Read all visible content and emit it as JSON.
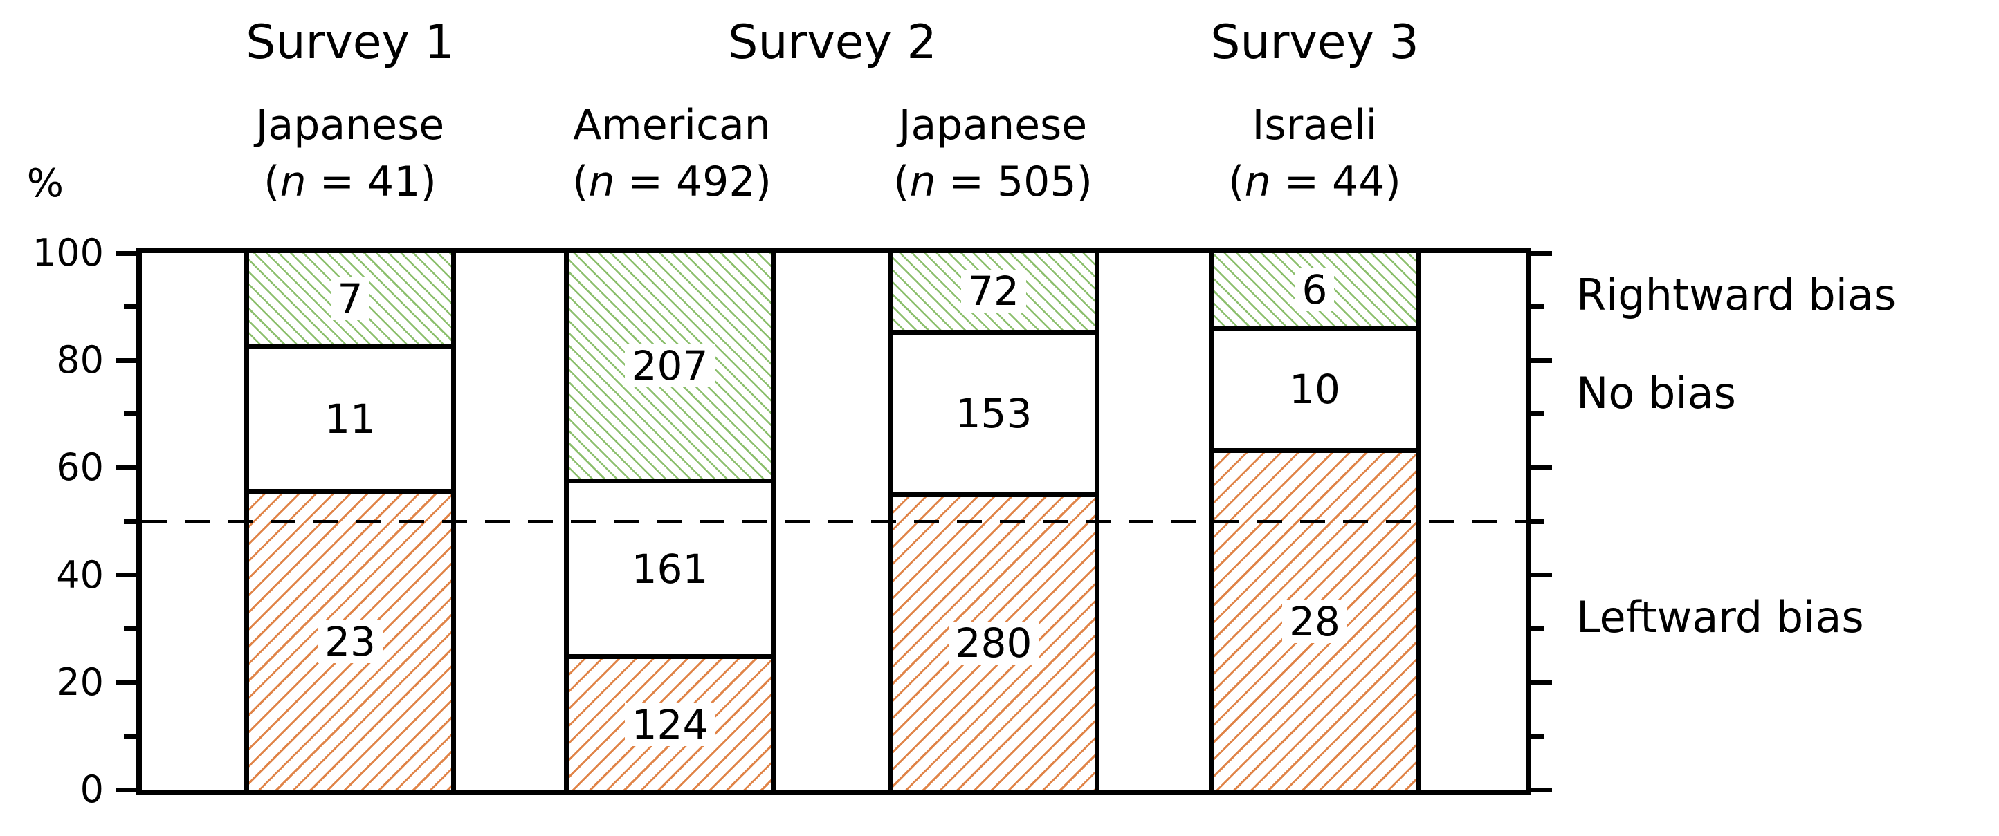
{
  "chart_data": {
    "type": "bar",
    "stacked": true,
    "title": "",
    "ylabel": "%",
    "ylim": [
      0,
      100
    ],
    "yticks_major": [
      0,
      20,
      40,
      60,
      80,
      100
    ],
    "yticks_minor": [
      10,
      30,
      50,
      70,
      90
    ],
    "reference_line_percent": 50,
    "grid": false,
    "legend_position": "right",
    "surveys": [
      {
        "label": "Survey 1",
        "bar_indexes": [
          0
        ]
      },
      {
        "label": "Survey 2",
        "bar_indexes": [
          1,
          2
        ]
      },
      {
        "label": "Survey 3",
        "bar_indexes": [
          3
        ]
      }
    ],
    "categories": [
      "Japanese",
      "American",
      "Japanese",
      "Israeli"
    ],
    "bars": [
      {
        "group": "Japanese",
        "n": 41,
        "n_label": "(n = 41)",
        "values": {
          "leftward": 23,
          "no_bias": 11,
          "rightward": 7
        }
      },
      {
        "group": "American",
        "n": 492,
        "n_label": "(n = 492)",
        "values": {
          "leftward": 124,
          "no_bias": 161,
          "rightward": 207
        }
      },
      {
        "group": "Japanese",
        "n": 505,
        "n_label": "(n = 505)",
        "values": {
          "leftward": 280,
          "no_bias": 153,
          "rightward": 72
        }
      },
      {
        "group": "Israeli",
        "n": 44,
        "n_label": "(n = 44)",
        "values": {
          "leftward": 28,
          "no_bias": 10,
          "rightward": 6
        }
      }
    ],
    "series_bottom_to_top": [
      {
        "key": "leftward",
        "label": "Leftward bias",
        "fill": "orange-hatch"
      },
      {
        "key": "no_bias",
        "label": "No bias",
        "fill": "white-fill"
      },
      {
        "key": "rightward",
        "label": "Rightward bias",
        "fill": "green-hatch"
      }
    ],
    "colors": {
      "rightward_hatch_green": "#8cbf6d",
      "leftward_hatch_orange": "#e08448",
      "frame": "#000000",
      "text": "#000000",
      "background": "#ffffff"
    }
  }
}
